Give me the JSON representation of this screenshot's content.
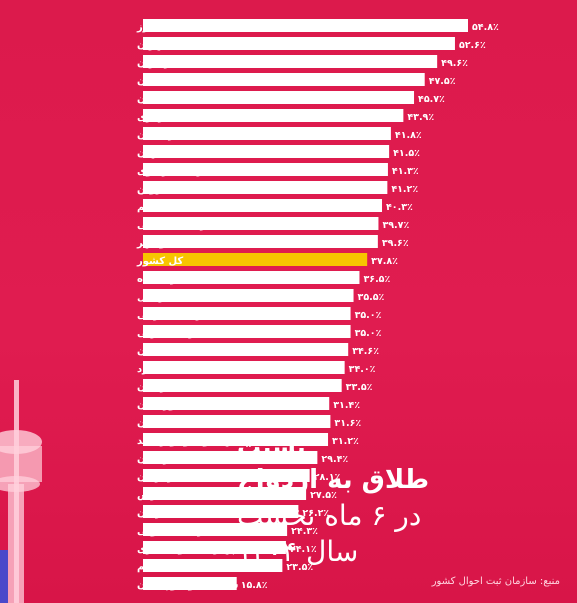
{
  "chart_data": {
    "type": "bar",
    "orientation": "horizontal",
    "title_lines": [
      "نسبت",
      "طلاق به ازدواج",
      "در ۶ ماه نخست",
      "سال ۱۴۰۴"
    ],
    "source": "منبع: سازمان ثبت احوال کشور",
    "highlight_category": "کل کشور",
    "colors": {
      "bar": "#ffffff",
      "highlight": "#f7c500",
      "background": "#e0194f",
      "text": "#ffffff"
    },
    "xlim": [
      0,
      55
    ],
    "categories": [
      "البرز",
      "تهران",
      "مازندران",
      "سمنان",
      "گیلان",
      "مرکزی",
      "کردستان",
      "اصفهان",
      "خراسان رضوی",
      "قزوین",
      "قم",
      "خراسان شمالی",
      "بوشهر",
      "کل کشور",
      "کرمانشاه",
      "اردبیل",
      "آذربایجانشرقی",
      "آذربایجانغربی",
      "همدان",
      "یزد",
      "زنجان",
      "خوزستان",
      "گلستان",
      "کهگیلویه و بویراحمد",
      "لرستان",
      "هرمزگان",
      "فارس",
      "کرمان",
      "خراسان جنوبی",
      "چهارمحال و بختیاری",
      "ایلام",
      "سیستان و بلوچستان"
    ],
    "values": [
      54.8,
      52.6,
      49.6,
      47.5,
      45.7,
      43.9,
      41.8,
      41.5,
      41.3,
      41.2,
      40.3,
      39.7,
      39.6,
      37.8,
      36.5,
      35.5,
      35.0,
      35.0,
      34.6,
      34.0,
      33.5,
      31.4,
      31.6,
      31.2,
      29.4,
      28.1,
      27.5,
      26.2,
      24.3,
      24.1,
      23.5,
      15.8
    ],
    "value_labels": [
      "۵۴.۸٪",
      "۵۲.۶٪",
      "۴۹.۶٪",
      "۴۷.۵٪",
      "۴۵.۷٪",
      "۴۳.۹٪",
      "۴۱.۸٪",
      "۴۱.۵٪",
      "۴۱.۳٪",
      "۴۱.۲٪",
      "۴۰.۳٪",
      "۳۹.۷٪",
      "۳۹.۶٪",
      "۳۷.۸٪",
      "۳۶.۵٪",
      "۳۵.۵٪",
      "۳۵.۰٪",
      "۳۵.۰٪",
      "۳۴.۶٪",
      "۳۴.۰٪",
      "۳۳.۵٪",
      "۳۱.۴٪",
      "۳۱.۶٪",
      "۳۱.۲٪",
      "۲۹.۴٪",
      "۲۸.۱٪",
      "۲۷.۵٪",
      "۲۶.۲٪",
      "۲۴.۳٪",
      "۲۴.۱٪",
      "۲۳.۵٪",
      "۱۵.۸٪"
    ]
  }
}
